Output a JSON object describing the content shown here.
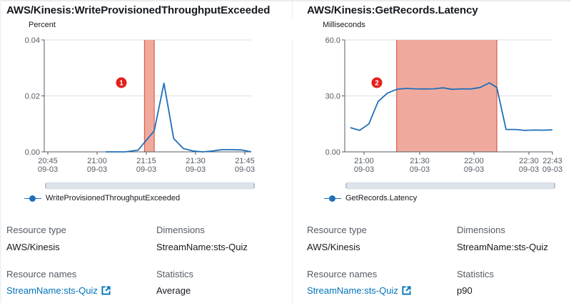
{
  "colors": {
    "series_line": "#1f6fba",
    "highlight_fill": "#f0aa9d",
    "highlight_edge": "#d9594a",
    "badge": "#e3201b",
    "link": "#0073bb",
    "muted_text": "#545b64",
    "gridline": "#e1e4e6"
  },
  "left_panel": {
    "title": "AWS/Kinesis:WriteProvisionedThroughputExceeded",
    "unit": "Percent",
    "legend_label": "WriteProvisionedThroughputExceeded",
    "badge": "1",
    "details": {
      "resource_type_label": "Resource type",
      "resource_type_value": "AWS/Kinesis",
      "dimensions_label": "Dimensions",
      "dimensions_value": "StreamName:sts-Quiz",
      "resource_names_label": "Resource names",
      "resource_names_value": "StreamName:sts-Quiz",
      "statistics_label": "Statistics",
      "statistics_value": "Average"
    }
  },
  "right_panel": {
    "title": "AWS/Kinesis:GetRecords.Latency",
    "unit": "Milliseconds",
    "legend_label": "GetRecords.Latency",
    "badge": "2",
    "details": {
      "resource_type_label": "Resource type",
      "resource_type_value": "AWS/Kinesis",
      "dimensions_label": "Dimensions",
      "dimensions_value": "StreamName:sts-Quiz",
      "resource_names_label": "Resource names",
      "resource_names_value": "StreamName:sts-Quiz",
      "statistics_label": "Statistics",
      "statistics_value": "p90"
    }
  },
  "chart_data": [
    {
      "type": "line",
      "title": "AWS/Kinesis:WriteProvisionedThroughputExceeded",
      "ylabel": "Percent",
      "xlabel": "",
      "ylim": [
        0,
        0.04
      ],
      "y_ticks": [
        "0.00",
        "0.02",
        "0.04"
      ],
      "x_ticks": [
        {
          "time": "20:45",
          "date": "09-03"
        },
        {
          "time": "21:00",
          "date": "09-03"
        },
        {
          "time": "21:15",
          "date": "09-03"
        },
        {
          "time": "21:30",
          "date": "09-03"
        },
        {
          "time": "21:45",
          "date": "09-03"
        }
      ],
      "grid": true,
      "legend_position": "bottom",
      "highlight_band": {
        "start": "21:14",
        "end": "21:17",
        "annotation": "1"
      },
      "series": [
        {
          "name": "WriteProvisionedThroughputExceeded",
          "x": [
            "21:02",
            "21:05",
            "21:08",
            "21:12",
            "21:17",
            "21:20",
            "21:23",
            "21:26",
            "21:29",
            "21:32",
            "21:35",
            "21:38",
            "21:41",
            "21:44",
            "21:47"
          ],
          "values": [
            0.0,
            0.0,
            0.0,
            0.0006,
            0.0075,
            0.0245,
            0.0048,
            0.0012,
            0.0003,
            0.0,
            0.0003,
            0.0008,
            0.0008,
            0.0007,
            0.0
          ]
        }
      ]
    },
    {
      "type": "line",
      "title": "AWS/Kinesis:GetRecords.Latency",
      "ylabel": "Milliseconds",
      "xlabel": "",
      "ylim": [
        0,
        60
      ],
      "y_ticks": [
        "0.00",
        "30.0",
        "60.0"
      ],
      "x_ticks": [
        {
          "time": "21:00",
          "date": "09-03"
        },
        {
          "time": "21:30",
          "date": "09-03"
        },
        {
          "time": "22:00",
          "date": "09-03"
        },
        {
          "time": "22:30",
          "date": "09-03"
        },
        {
          "time": "22:43",
          "date": "09-03"
        }
      ],
      "grid": true,
      "legend_position": "bottom",
      "highlight_band": {
        "start": "21:19",
        "end": "22:13",
        "annotation": "2"
      },
      "series": [
        {
          "name": "GetRecords.Latency",
          "x": [
            "20:54",
            "20:59",
            "21:04",
            "21:09",
            "21:14",
            "21:19",
            "21:24",
            "21:29",
            "21:34",
            "21:39",
            "21:44",
            "21:49",
            "21:54",
            "21:59",
            "22:04",
            "22:09",
            "22:13",
            "22:18",
            "22:23",
            "22:28",
            "22:33",
            "22:38",
            "22:43"
          ],
          "values": [
            13,
            11.5,
            15,
            27,
            31.5,
            33.5,
            34,
            33.8,
            33.7,
            33.8,
            34.3,
            33.5,
            33.8,
            33.7,
            34.5,
            37,
            34.5,
            12,
            12,
            11.5,
            11.7,
            11.6,
            11.8
          ]
        }
      ]
    }
  ]
}
